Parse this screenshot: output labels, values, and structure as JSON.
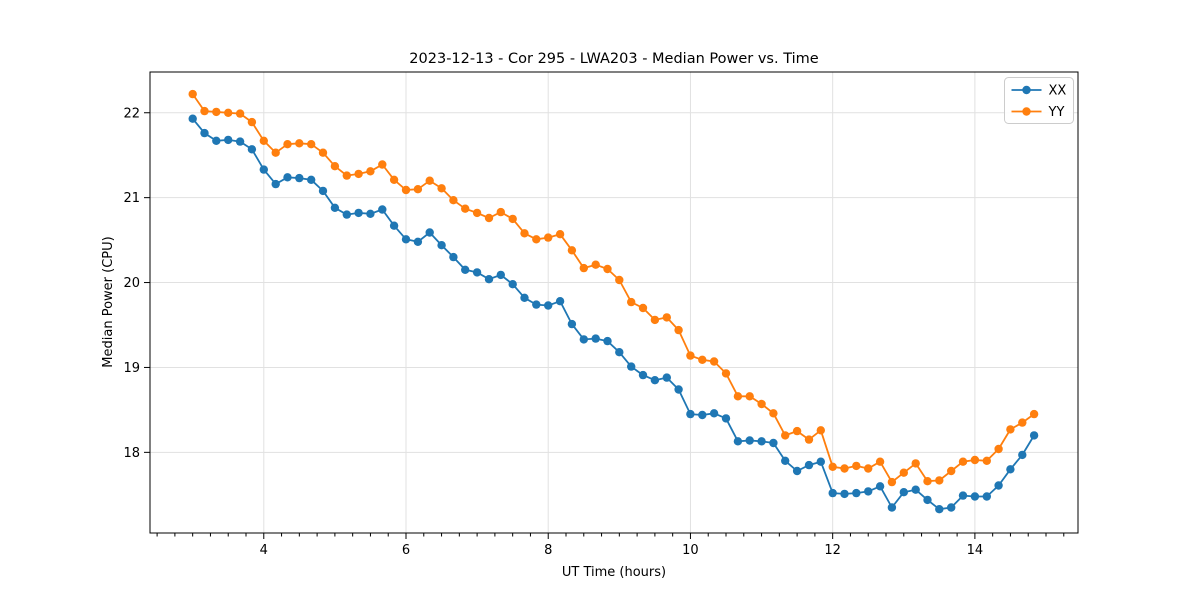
{
  "chart_data": {
    "type": "line",
    "title": "2023-12-13 - Cor 295 - LWA203 - Median Power vs. Time",
    "xlabel": "UT Time (hours)",
    "ylabel": "Median Power (CPU)",
    "xlim": [
      2.4,
      15.45
    ],
    "ylim": [
      17.05,
      22.48
    ],
    "x_major_ticks": [
      4,
      6,
      8,
      10,
      12,
      14
    ],
    "x_minor_tick_step": 0.25,
    "y_major_ticks": [
      18,
      19,
      20,
      21,
      22
    ],
    "grid": true,
    "grid_color": "#e1e1e1",
    "spine_color": "#000000",
    "legend_position": "upper right",
    "x": [
      3.0,
      3.167,
      3.333,
      3.5,
      3.667,
      3.833,
      4.0,
      4.167,
      4.333,
      4.5,
      4.667,
      4.833,
      5.0,
      5.167,
      5.333,
      5.5,
      5.667,
      5.833,
      6.0,
      6.167,
      6.333,
      6.5,
      6.667,
      6.833,
      7.0,
      7.167,
      7.333,
      7.5,
      7.667,
      7.833,
      8.0,
      8.167,
      8.333,
      8.5,
      8.667,
      8.833,
      9.0,
      9.167,
      9.333,
      9.5,
      9.667,
      9.833,
      10.0,
      10.167,
      10.333,
      10.5,
      10.667,
      10.833,
      11.0,
      11.167,
      11.333,
      11.5,
      11.667,
      11.833,
      12.0,
      12.167,
      12.333,
      12.5,
      12.667,
      12.833,
      13.0,
      13.167,
      13.333,
      13.5,
      13.667,
      13.833,
      14.0,
      14.167,
      14.333,
      14.5,
      14.667,
      14.833
    ],
    "series": [
      {
        "name": "XX",
        "color": "#1f77b4",
        "marker": "circle",
        "values": [
          21.93,
          21.76,
          21.67,
          21.68,
          21.66,
          21.57,
          21.33,
          21.16,
          21.24,
          21.23,
          21.21,
          21.08,
          20.88,
          20.8,
          20.82,
          20.81,
          20.86,
          20.67,
          20.51,
          20.48,
          20.59,
          20.44,
          20.3,
          20.15,
          20.12,
          20.04,
          20.09,
          19.98,
          19.82,
          19.74,
          19.73,
          19.78,
          19.51,
          19.33,
          19.34,
          19.31,
          19.18,
          19.01,
          18.91,
          18.85,
          18.88,
          18.74,
          18.45,
          18.44,
          18.46,
          18.4,
          18.13,
          18.14,
          18.13,
          18.11,
          17.9,
          17.78,
          17.85,
          17.89,
          17.52,
          17.51,
          17.52,
          17.54,
          17.6,
          17.35,
          17.53,
          17.56,
          17.44,
          17.33,
          17.35,
          17.49,
          17.48,
          17.48,
          17.61,
          17.8,
          17.97,
          18.2
        ]
      },
      {
        "name": "YY",
        "color": "#ff7f0e",
        "marker": "circle",
        "values": [
          22.22,
          22.02,
          22.01,
          22.0,
          21.99,
          21.89,
          21.67,
          21.53,
          21.63,
          21.64,
          21.63,
          21.53,
          21.37,
          21.26,
          21.28,
          21.31,
          21.39,
          21.21,
          21.09,
          21.1,
          21.2,
          21.11,
          20.97,
          20.87,
          20.82,
          20.76,
          20.83,
          20.75,
          20.58,
          20.51,
          20.53,
          20.57,
          20.38,
          20.17,
          20.21,
          20.16,
          20.03,
          19.77,
          19.7,
          19.56,
          19.59,
          19.44,
          19.14,
          19.09,
          19.07,
          18.93,
          18.66,
          18.66,
          18.57,
          18.46,
          18.2,
          18.25,
          18.15,
          18.26,
          17.83,
          17.81,
          17.84,
          17.81,
          17.89,
          17.65,
          17.76,
          17.87,
          17.66,
          17.67,
          17.78,
          17.89,
          17.91,
          17.9,
          18.04,
          18.27,
          18.35,
          18.45
        ]
      }
    ]
  }
}
